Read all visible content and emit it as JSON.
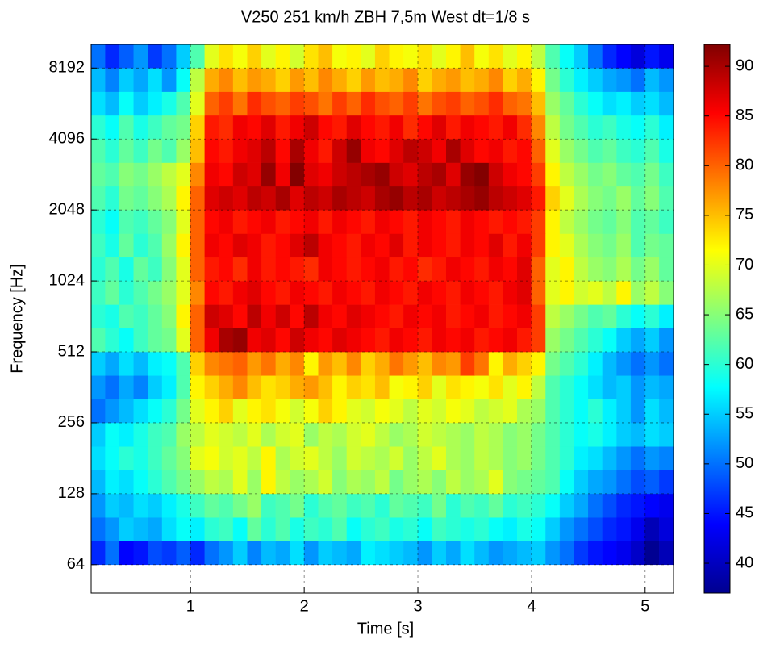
{
  "chart_data": {
    "type": "heatmap",
    "title": "V250 251 km/h ZBH 7,5m West dt=1/8 s",
    "xlabel": "Time [s]",
    "ylabel": "Frequency [Hz]",
    "colormap": "jet",
    "yscale": "log",
    "grid": true,
    "xlim": [
      0.125,
      5.25
    ],
    "ylim": [
      48.5,
      10321
    ],
    "xticks": [
      1,
      2,
      3,
      4,
      5
    ],
    "yticks": [
      64,
      128,
      256,
      512,
      1024,
      2048,
      4096,
      8192
    ],
    "clim": [
      37,
      92.2
    ],
    "cticks": [
      40,
      45,
      50,
      55,
      60,
      65,
      70,
      75,
      80,
      85,
      90
    ],
    "x_edges": [
      0.125,
      0.25,
      0.375,
      0.5,
      0.625,
      0.75,
      0.875,
      1,
      1.125,
      1.25,
      1.375,
      1.5,
      1.625,
      1.75,
      1.875,
      2,
      2.125,
      2.25,
      2.375,
      2.5,
      2.625,
      2.75,
      2.875,
      3,
      3.125,
      3.25,
      3.375,
      3.5,
      3.625,
      3.75,
      3.875,
      4,
      4.125,
      4.25,
      4.375,
      4.5,
      4.625,
      4.75,
      4.875,
      5,
      5.125,
      5.25
    ],
    "y_edges": [
      64,
      80.6,
      101.6,
      128,
      161.3,
      203.2,
      256,
      322.5,
      406.4,
      512,
      645.1,
      812.7,
      1024,
      1290,
      1625,
      2048,
      2580,
      3251,
      4096,
      5161,
      6502,
      8192,
      10321
    ],
    "z": [
      [
        46,
        50,
        44,
        45,
        48,
        47,
        49,
        46,
        50,
        52,
        55,
        51,
        54,
        53,
        56,
        52,
        55,
        54,
        53,
        57,
        56,
        55,
        54,
        52,
        55,
        53,
        56,
        54,
        52,
        53,
        54,
        55,
        52,
        50,
        47,
        45,
        44,
        43,
        41,
        38,
        40
      ],
      [
        50,
        52,
        55,
        54,
        53,
        56,
        58,
        57,
        60,
        61,
        58,
        63,
        60,
        62,
        59,
        61,
        60,
        62,
        58,
        60,
        61,
        59,
        60,
        58,
        61,
        60,
        59,
        60,
        58,
        57,
        59,
        58,
        55,
        52,
        50,
        48,
        46,
        45,
        43,
        40,
        42
      ],
      [
        52,
        55,
        54,
        56,
        55,
        57,
        59,
        61,
        63,
        62,
        64,
        66,
        61,
        62,
        64,
        60,
        62,
        63,
        61,
        62,
        60,
        63,
        62,
        61,
        64,
        60,
        62,
        61,
        63,
        60,
        61,
        60,
        58,
        55,
        53,
        50,
        48,
        46,
        45,
        44,
        43
      ],
      [
        54,
        57,
        56,
        58,
        60,
        62,
        64,
        66,
        68,
        67,
        70,
        66,
        72,
        68,
        66,
        67,
        69,
        65,
        67,
        66,
        68,
        64,
        66,
        67,
        65,
        68,
        66,
        67,
        70,
        65,
        64,
        63,
        62,
        58,
        55,
        53,
        52,
        50,
        48,
        49,
        47
      ],
      [
        56,
        58,
        60,
        59,
        61,
        63,
        65,
        70,
        71,
        69,
        70,
        68,
        72,
        67,
        69,
        70,
        68,
        66,
        69,
        68,
        67,
        69,
        66,
        68,
        70,
        67,
        66,
        68,
        67,
        65,
        66,
        64,
        62,
        60,
        57,
        56,
        54,
        52,
        50,
        52,
        51
      ],
      [
        55,
        58,
        57,
        59,
        61,
        62,
        66,
        68,
        70,
        69,
        68,
        70,
        67,
        69,
        70,
        66,
        68,
        67,
        69,
        70,
        68,
        66,
        67,
        69,
        68,
        67,
        66,
        68,
        67,
        65,
        66,
        64,
        62,
        60,
        58,
        59,
        57,
        55,
        54,
        56,
        55
      ],
      [
        50,
        52,
        54,
        56,
        58,
        60,
        64,
        70,
        72,
        74,
        70,
        72,
        73,
        71,
        69,
        71,
        74,
        72,
        70,
        69,
        71,
        70,
        68,
        70,
        69,
        71,
        70,
        68,
        69,
        70,
        67,
        66,
        62,
        60,
        58,
        60,
        57,
        55,
        52,
        56,
        54
      ],
      [
        52,
        50,
        53,
        51,
        55,
        57,
        62,
        72,
        74,
        76,
        78,
        75,
        73,
        74,
        76,
        77,
        75,
        72,
        74,
        73,
        75,
        71,
        72,
        74,
        70,
        73,
        72,
        71,
        73,
        70,
        72,
        68,
        62,
        60,
        58,
        56,
        54,
        55,
        52,
        54,
        53
      ],
      [
        55,
        53,
        56,
        54,
        57,
        58,
        62,
        74,
        78,
        79,
        80,
        77,
        79,
        76,
        78,
        72,
        77,
        75,
        78,
        74,
        76,
        79,
        77,
        75,
        78,
        77,
        82,
        79,
        72,
        76,
        74,
        72,
        64,
        62,
        60,
        57,
        54,
        52,
        50,
        52,
        50
      ],
      [
        62,
        60,
        58,
        61,
        63,
        64,
        70,
        80,
        86,
        90,
        91,
        86,
        87,
        85,
        88,
        86,
        85,
        87,
        86,
        85,
        84,
        86,
        85,
        84,
        86,
        85,
        86,
        84,
        85,
        86,
        84,
        82,
        66,
        64,
        62,
        60,
        58,
        55,
        53,
        55,
        52
      ],
      [
        60,
        59,
        62,
        61,
        63,
        65,
        72,
        80,
        88,
        87,
        85,
        89,
        86,
        88,
        85,
        89,
        86,
        85,
        87,
        86,
        85,
        84,
        86,
        85,
        86,
        84,
        85,
        86,
        84,
        85,
        86,
        82,
        68,
        66,
        64,
        62,
        63,
        60,
        58,
        60,
        57
      ],
      [
        61,
        63,
        60,
        62,
        64,
        66,
        70,
        78,
        85,
        84,
        86,
        87,
        85,
        84,
        86,
        85,
        84,
        86,
        85,
        84,
        86,
        85,
        84,
        86,
        85,
        84,
        86,
        85,
        84,
        86,
        87,
        80,
        70,
        72,
        69,
        70,
        68,
        72,
        66,
        68,
        65
      ],
      [
        60,
        62,
        59,
        63,
        61,
        65,
        70,
        80,
        84,
        85,
        83,
        86,
        84,
        85,
        84,
        83,
        86,
        85,
        84,
        85,
        86,
        84,
        85,
        83,
        84,
        86,
        85,
        84,
        86,
        85,
        87,
        80,
        70,
        72,
        68,
        66,
        65,
        67,
        64,
        66,
        63
      ],
      [
        61,
        59,
        63,
        60,
        62,
        66,
        72,
        80,
        86,
        85,
        87,
        86,
        84,
        85,
        87,
        89,
        86,
        85,
        84,
        86,
        85,
        87,
        84,
        86,
        85,
        84,
        86,
        85,
        87,
        84,
        86,
        82,
        72,
        70,
        67,
        65,
        64,
        66,
        62,
        64,
        63
      ],
      [
        60,
        58,
        62,
        61,
        63,
        65,
        70,
        80,
        85,
        86,
        84,
        85,
        86,
        84,
        85,
        86,
        84,
        86,
        85,
        84,
        86,
        85,
        84,
        86,
        85,
        84,
        86,
        85,
        84,
        85,
        84,
        82,
        72,
        68,
        66,
        64,
        63,
        65,
        62,
        63,
        61
      ],
      [
        62,
        60,
        64,
        63,
        65,
        67,
        72,
        80,
        87,
        88,
        87,
        89,
        88,
        90,
        87,
        89,
        88,
        90,
        89,
        88,
        90,
        91,
        89,
        90,
        88,
        89,
        90,
        91,
        89,
        88,
        87,
        84,
        74,
        70,
        67,
        65,
        64,
        66,
        63,
        65,
        62
      ],
      [
        63,
        62,
        65,
        64,
        66,
        68,
        70,
        78,
        86,
        85,
        88,
        87,
        91,
        86,
        92,
        87,
        86,
        88,
        89,
        90,
        91,
        88,
        87,
        89,
        90,
        87,
        91,
        92,
        88,
        86,
        85,
        82,
        72,
        68,
        66,
        64,
        65,
        63,
        62,
        64,
        61
      ],
      [
        62,
        60,
        63,
        61,
        64,
        62,
        66,
        75,
        85,
        84,
        86,
        87,
        89,
        85,
        90,
        86,
        84,
        88,
        91,
        86,
        85,
        87,
        89,
        88,
        86,
        90,
        87,
        85,
        86,
        84,
        85,
        80,
        70,
        66,
        64,
        62,
        63,
        61,
        60,
        62,
        59
      ],
      [
        60,
        58,
        62,
        59,
        61,
        63,
        64,
        74,
        84,
        83,
        86,
        85,
        87,
        84,
        86,
        88,
        85,
        84,
        87,
        85,
        84,
        86,
        83,
        85,
        87,
        84,
        86,
        85,
        84,
        86,
        83,
        78,
        68,
        64,
        62,
        60,
        61,
        59,
        58,
        60,
        57
      ],
      [
        56,
        54,
        58,
        55,
        57,
        59,
        62,
        70,
        80,
        82,
        79,
        83,
        81,
        80,
        82,
        81,
        79,
        82,
        80,
        83,
        81,
        80,
        82,
        79,
        81,
        82,
        80,
        81,
        83,
        80,
        79,
        75,
        66,
        63,
        60,
        58,
        56,
        57,
        55,
        56,
        54
      ],
      [
        54,
        51,
        55,
        53,
        56,
        52,
        58,
        68,
        76,
        78,
        75,
        77,
        76,
        74,
        77,
        75,
        78,
        76,
        74,
        77,
        75,
        76,
        78,
        74,
        76,
        77,
        75,
        76,
        78,
        74,
        76,
        72,
        64,
        60,
        57,
        55,
        53,
        52,
        50,
        54,
        52
      ],
      [
        50,
        46,
        49,
        52,
        47,
        50,
        55,
        62,
        70,
        73,
        71,
        74,
        70,
        72,
        69,
        73,
        75,
        71,
        72,
        70,
        74,
        72,
        71,
        73,
        70,
        72,
        75,
        71,
        73,
        70,
        72,
        68,
        62,
        58,
        55,
        50,
        46,
        44,
        42,
        45,
        43
      ]
    ]
  }
}
